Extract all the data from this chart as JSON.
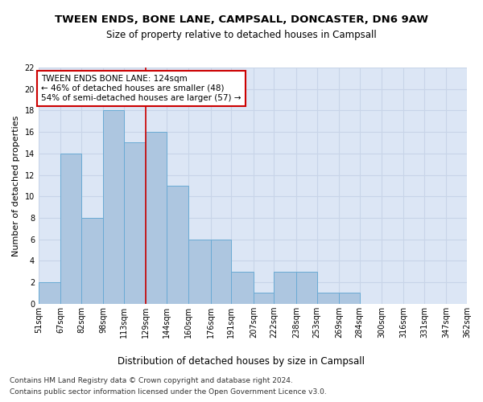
{
  "title": "TWEEN ENDS, BONE LANE, CAMPSALL, DONCASTER, DN6 9AW",
  "subtitle": "Size of property relative to detached houses in Campsall",
  "xlabel": "Distribution of detached houses by size in Campsall",
  "ylabel": "Number of detached properties",
  "bar_edges": [
    51,
    67,
    82,
    98,
    113,
    129,
    144,
    160,
    176,
    191,
    207,
    222,
    238,
    253,
    269,
    284,
    300,
    316,
    331,
    347,
    362
  ],
  "bar_heights": [
    2,
    14,
    8,
    18,
    15,
    16,
    11,
    6,
    6,
    3,
    1,
    3,
    3,
    1,
    1,
    0,
    0,
    0,
    0,
    0
  ],
  "bar_color": "#adc6e0",
  "bar_edgecolor": "#6aaad4",
  "ref_line_x": 129,
  "ref_line_color": "#cc0000",
  "annotation_text": "TWEEN ENDS BONE LANE: 124sqm\n← 46% of detached houses are smaller (48)\n54% of semi-detached houses are larger (57) →",
  "annotation_box_edgecolor": "#cc0000",
  "ylim": [
    0,
    22
  ],
  "yticks": [
    0,
    2,
    4,
    6,
    8,
    10,
    12,
    14,
    16,
    18,
    20,
    22
  ],
  "grid_color": "#c8d4e8",
  "background_color": "#dce6f5",
  "footer1": "Contains HM Land Registry data © Crown copyright and database right 2024.",
  "footer2": "Contains public sector information licensed under the Open Government Licence v3.0.",
  "title_fontsize": 9.5,
  "subtitle_fontsize": 8.5,
  "xlabel_fontsize": 8.5,
  "ylabel_fontsize": 8,
  "tick_fontsize": 7,
  "annotation_fontsize": 7.5,
  "footer_fontsize": 6.5
}
